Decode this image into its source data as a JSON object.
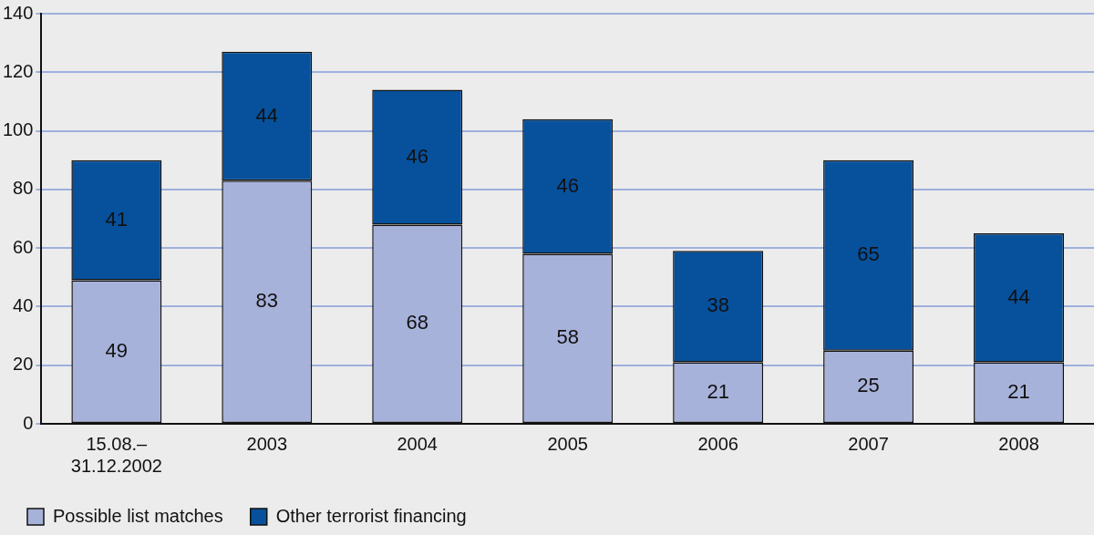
{
  "chart_data": {
    "type": "bar",
    "stacked": true,
    "categories": [
      "15.08.–\n31.12.2002",
      "2003",
      "2004",
      "2005",
      "2006",
      "2007",
      "2008"
    ],
    "series": [
      {
        "name": "Possible list matches",
        "color": "#a7b2da",
        "values": [
          49,
          83,
          68,
          58,
          21,
          25,
          21
        ]
      },
      {
        "name": "Other terrorist financing",
        "color": "#07519c",
        "values": [
          41,
          44,
          46,
          46,
          38,
          65,
          44
        ]
      }
    ],
    "ylim": [
      0,
      140
    ],
    "yticks": [
      0,
      20,
      40,
      60,
      80,
      100,
      120,
      140
    ],
    "grid": "y",
    "legend": "bottom left",
    "data_labels": true
  }
}
